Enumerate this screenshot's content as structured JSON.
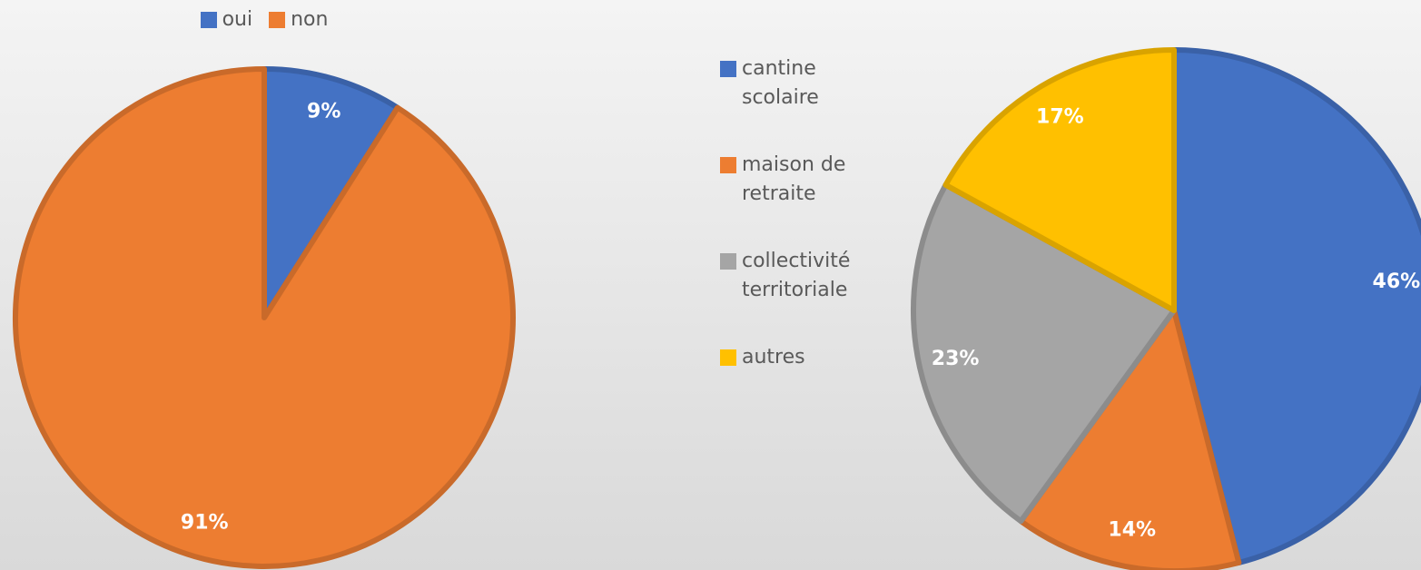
{
  "chart_data": [
    {
      "type": "pie",
      "categories": [
        "oui",
        "non"
      ],
      "values": [
        9,
        91
      ],
      "value_labels": [
        "9%",
        "91%"
      ],
      "colors": [
        "#4472c4",
        "#ed7d31"
      ],
      "legend": "top"
    },
    {
      "type": "pie",
      "categories": [
        "cantine scolaire",
        "maison de retraite",
        "collectivité territoriale",
        "autres"
      ],
      "values": [
        46,
        14,
        23,
        17
      ],
      "value_labels": [
        "46%",
        "14%",
        "23%",
        "17%"
      ],
      "colors": [
        "#4472c4",
        "#ed7d31",
        "#a5a5a5",
        "#ffc000"
      ],
      "legend": "left"
    }
  ]
}
